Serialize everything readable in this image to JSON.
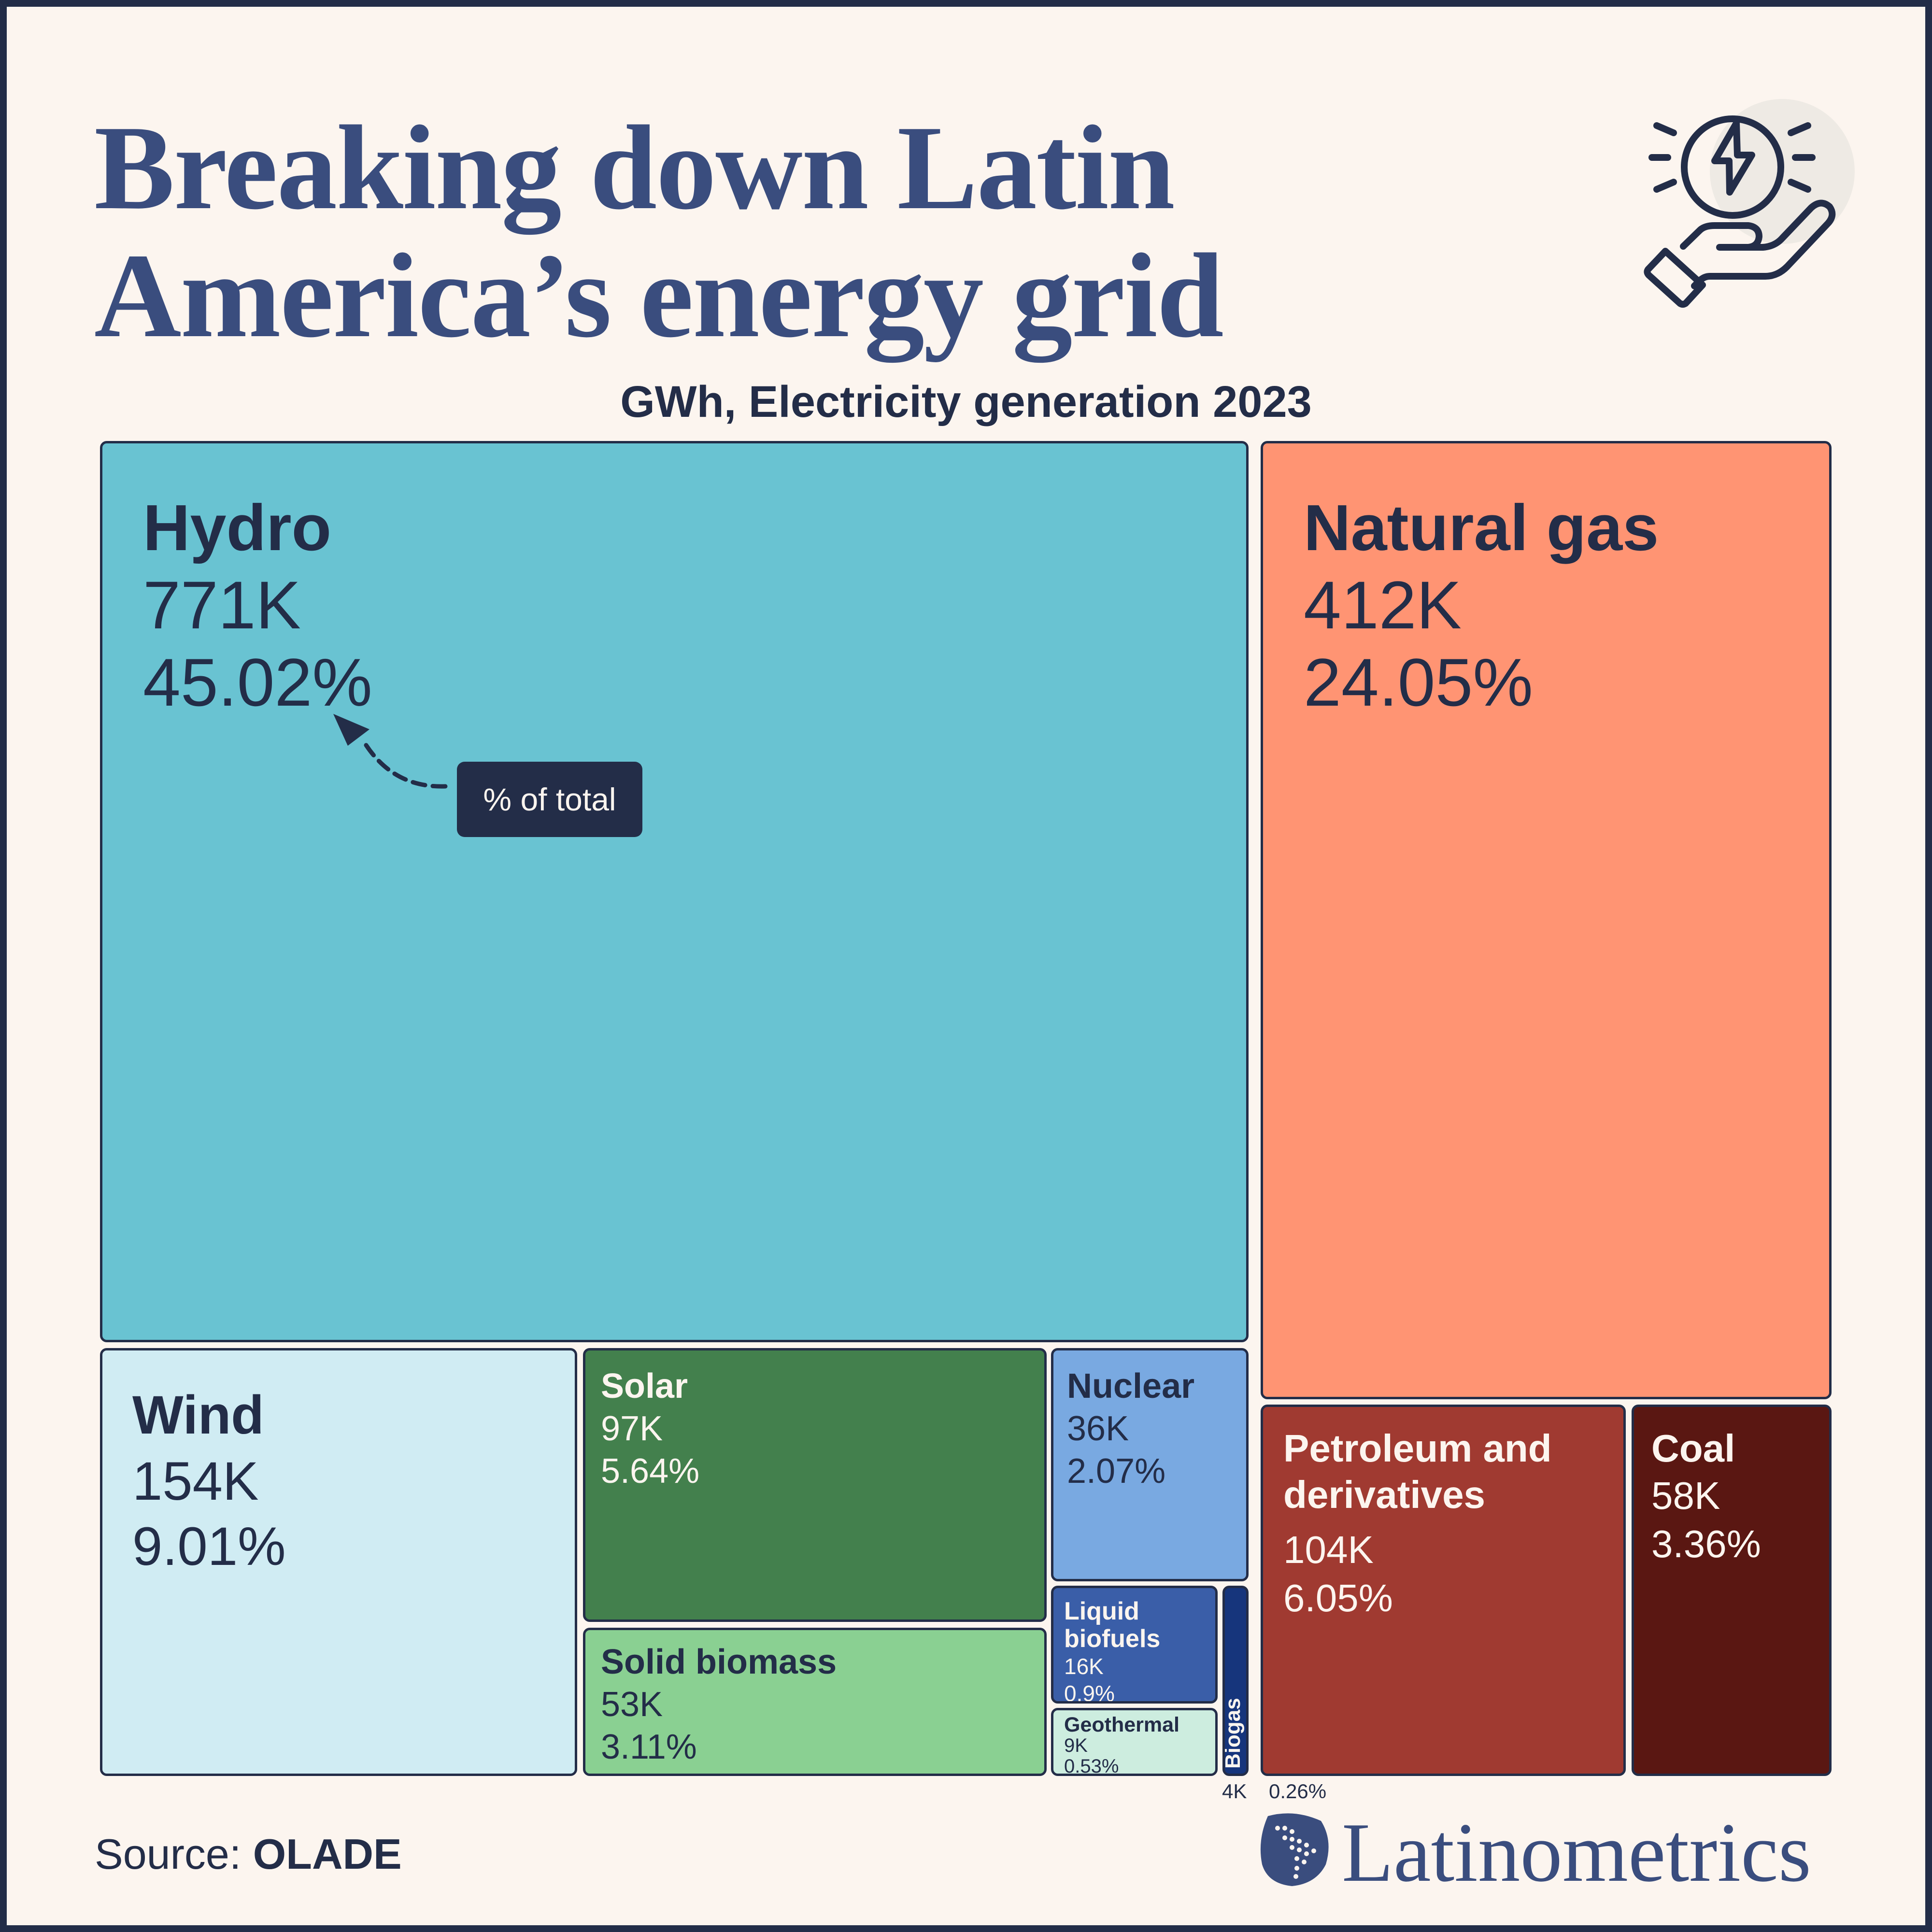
{
  "header": {
    "title_line1": "Breaking down Latin",
    "title_line2": "America’s energy grid",
    "subtitle": "GWh, Electricity generation 2023",
    "icon": "hand-holding-energy-icon"
  },
  "chart_data": {
    "type": "treemap",
    "title": "Breaking down Latin America’s energy grid",
    "subtitle": "GWh, Electricity generation 2023",
    "items": [
      {
        "name": "Hydro",
        "value_label": "771K",
        "pct_label": "45.02%",
        "value": 771000,
        "pct": 45.02,
        "color": "#69C3D2"
      },
      {
        "name": "Natural gas",
        "value_label": "412K",
        "pct_label": "24.05%",
        "value": 412000,
        "pct": 24.05,
        "color": "#FF9473"
      },
      {
        "name": "Wind",
        "value_label": "154K",
        "pct_label": "9.01%",
        "value": 154000,
        "pct": 9.01,
        "color": "#D0ECF3"
      },
      {
        "name": "Petroleum and derivatives",
        "name_line1": "Petroleum and",
        "name_line2": "derivatives",
        "value_label": "104K",
        "pct_label": "6.05%",
        "value": 104000,
        "pct": 6.05,
        "color": "#A03A31"
      },
      {
        "name": "Solar",
        "value_label": "97K",
        "pct_label": "5.64%",
        "value": 97000,
        "pct": 5.64,
        "color": "#43804D"
      },
      {
        "name": "Coal",
        "value_label": "58K",
        "pct_label": "3.36%",
        "value": 58000,
        "pct": 3.36,
        "color": "#5A1712"
      },
      {
        "name": "Solid biomass",
        "value_label": "53K",
        "pct_label": "3.11%",
        "value": 53000,
        "pct": 3.11,
        "color": "#8AD092"
      },
      {
        "name": "Nuclear",
        "value_label": "36K",
        "pct_label": "2.07%",
        "value": 36000,
        "pct": 2.07,
        "color": "#79A9E1"
      },
      {
        "name": "Liquid biofuels",
        "name_line1": "Liquid",
        "name_line2": "biofuels",
        "value_label": "16K",
        "pct_label": "0.9%",
        "value": 16000,
        "pct": 0.9,
        "color": "#3A5EA8"
      },
      {
        "name": "Geothermal",
        "value_label": "9K",
        "pct_label": "0.53%",
        "value": 9000,
        "pct": 0.53,
        "color": "#CDEDDF"
      },
      {
        "name": "Biogas",
        "value_label": "4K",
        "pct_label": "0.26%",
        "value": 4000,
        "pct": 0.26,
        "color": "#16357C"
      }
    ],
    "annotation": "% of total"
  },
  "footer": {
    "source_label": "Source:",
    "source_value": "OLADE",
    "brand": "Latinometrics"
  },
  "colors": {
    "background": "#FCF5EF",
    "text": "#232D48",
    "title": "#3A4D7E"
  }
}
